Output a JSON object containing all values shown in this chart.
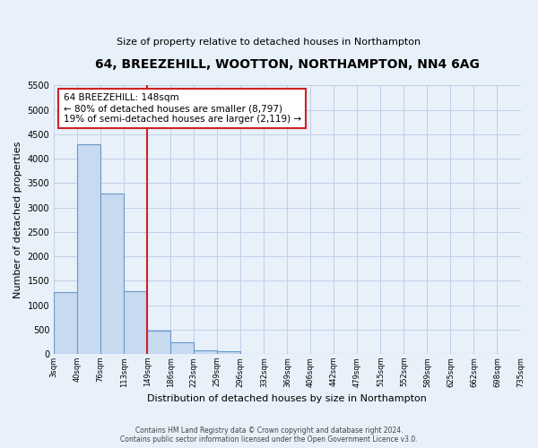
{
  "title": "64, BREEZEHILL, WOOTTON, NORTHAMPTON, NN4 6AG",
  "subtitle": "Size of property relative to detached houses in Northampton",
  "xlabel": "Distribution of detached houses by size in Northampton",
  "ylabel": "Number of detached properties",
  "bar_color": "#c8daf0",
  "bar_edge_color": "#6699cc",
  "background_color": "#e8f0fa",
  "grid_color": "#c0cfe8",
  "bin_labels": [
    "3sqm",
    "40sqm",
    "76sqm",
    "113sqm",
    "149sqm",
    "186sqm",
    "223sqm",
    "259sqm",
    "296sqm",
    "332sqm",
    "369sqm",
    "406sqm",
    "442sqm",
    "479sqm",
    "515sqm",
    "552sqm",
    "589sqm",
    "625sqm",
    "662sqm",
    "698sqm",
    "735sqm"
  ],
  "bar_values": [
    1270,
    4300,
    3290,
    1290,
    480,
    230,
    80,
    50,
    0,
    0,
    0,
    0,
    0,
    0,
    0,
    0,
    0,
    0,
    0,
    0
  ],
  "ylim": [
    0,
    5500
  ],
  "yticks": [
    0,
    500,
    1000,
    1500,
    2000,
    2500,
    3000,
    3500,
    4000,
    4500,
    5000,
    5500
  ],
  "property_line_bin_index": 3,
  "annotation_title": "64 BREEZEHILL: 148sqm",
  "annotation_line1": "← 80% of detached houses are smaller (8,797)",
  "annotation_line2": "19% of semi-detached houses are larger (2,119) →",
  "footnote1": "Contains HM Land Registry data © Crown copyright and database right 2024.",
  "footnote2": "Contains public sector information licensed under the Open Government Licence v3.0."
}
